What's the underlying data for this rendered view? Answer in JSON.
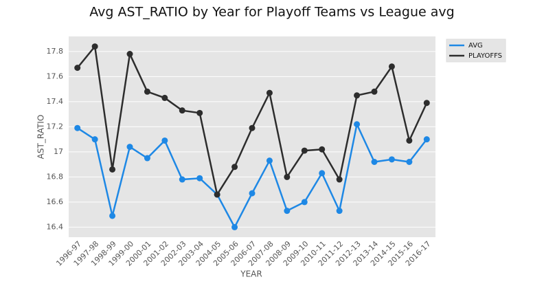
{
  "chart_data": {
    "type": "line",
    "title": "Avg AST_RATIO by Year for Playoff Teams vs League avg",
    "x_label": "YEAR",
    "y_label": "AST_RATIO",
    "categories": [
      "1996-97",
      "1997-98",
      "1998-99",
      "1999-00",
      "2000-01",
      "2001-02",
      "2002-03",
      "2003-04",
      "2004-05",
      "2005-06",
      "2006-07",
      "2007-08",
      "2008-09",
      "2009-10",
      "2010-11",
      "2011-12",
      "2012-13",
      "2013-14",
      "2014-15",
      "2015-16",
      "2016-17"
    ],
    "series": [
      {
        "name": "AVG",
        "color": "#1e88e5",
        "values": [
          17.19,
          17.1,
          16.49,
          17.04,
          16.95,
          17.09,
          16.78,
          16.79,
          16.66,
          16.4,
          16.67,
          16.93,
          16.53,
          16.6,
          16.83,
          16.53,
          17.22,
          16.92,
          16.94,
          16.92,
          17.1
        ]
      },
      {
        "name": "PLAYOFFS",
        "color": "#2d2d2d",
        "values": [
          17.67,
          17.84,
          16.86,
          17.78,
          17.48,
          17.43,
          17.33,
          17.31,
          16.66,
          16.88,
          17.19,
          17.47,
          16.8,
          17.01,
          17.02,
          16.78,
          17.45,
          17.48,
          17.68,
          17.09,
          17.39
        ]
      }
    ],
    "ylim": [
      16.32,
      17.92
    ],
    "yticks": [
      16.4,
      16.6,
      16.8,
      17.0,
      17.2,
      17.4,
      17.6,
      17.8
    ],
    "grid": true,
    "legend": "right"
  }
}
